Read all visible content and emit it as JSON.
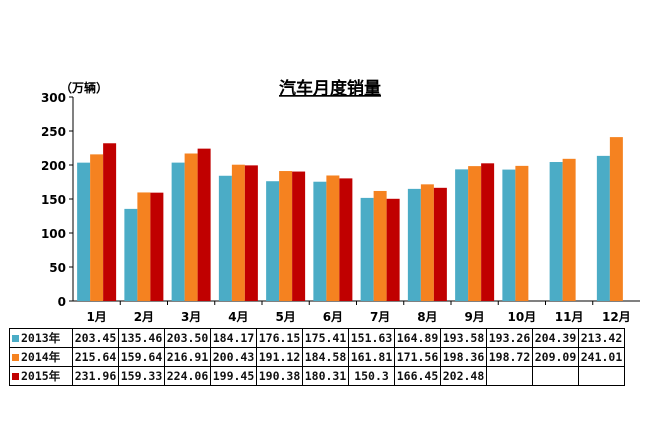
{
  "chart_data": {
    "type": "bar",
    "title": "汽车月度销量",
    "unit_label": "（万辆）",
    "categories": [
      "1月",
      "2月",
      "3月",
      "4月",
      "5月",
      "6月",
      "7月",
      "8月",
      "9月",
      "10月",
      "11月",
      "12月"
    ],
    "series": [
      {
        "name": "2013年",
        "color": "#4bacc6",
        "values": [
          203.45,
          135.46,
          203.5,
          184.17,
          176.15,
          175.41,
          151.63,
          164.89,
          193.58,
          193.26,
          204.39,
          213.42
        ],
        "labels": [
          "203.45",
          "135.46",
          "203.50",
          "184.17",
          "176.15",
          "175.41",
          "151.63",
          "164.89",
          "193.58",
          "193.26",
          "204.39",
          "213.42"
        ]
      },
      {
        "name": "2014年",
        "color": "#f58220",
        "values": [
          215.64,
          159.64,
          216.91,
          200.43,
          191.12,
          184.58,
          161.81,
          171.56,
          198.36,
          198.72,
          209.09,
          241.01
        ],
        "labels": [
          "215.64",
          "159.64",
          "216.91",
          "200.43",
          "191.12",
          "184.58",
          "161.81",
          "171.56",
          "198.36",
          "198.72",
          "209.09",
          "241.01"
        ]
      },
      {
        "name": "2015年",
        "color": "#c00000",
        "values": [
          231.96,
          159.33,
          224.06,
          199.45,
          190.38,
          180.31,
          150.3,
          166.45,
          202.48,
          null,
          null,
          null
        ],
        "labels": [
          "231.96",
          "159.33",
          "224.06",
          "199.45",
          "190.38",
          "180.31",
          "150.3",
          "166.45",
          "202.48",
          "",
          "",
          ""
        ]
      }
    ],
    "ylim": [
      0,
      300
    ],
    "yticks": [
      0,
      50,
      100,
      150,
      200,
      250,
      300
    ],
    "grid": false,
    "legend": "table"
  }
}
